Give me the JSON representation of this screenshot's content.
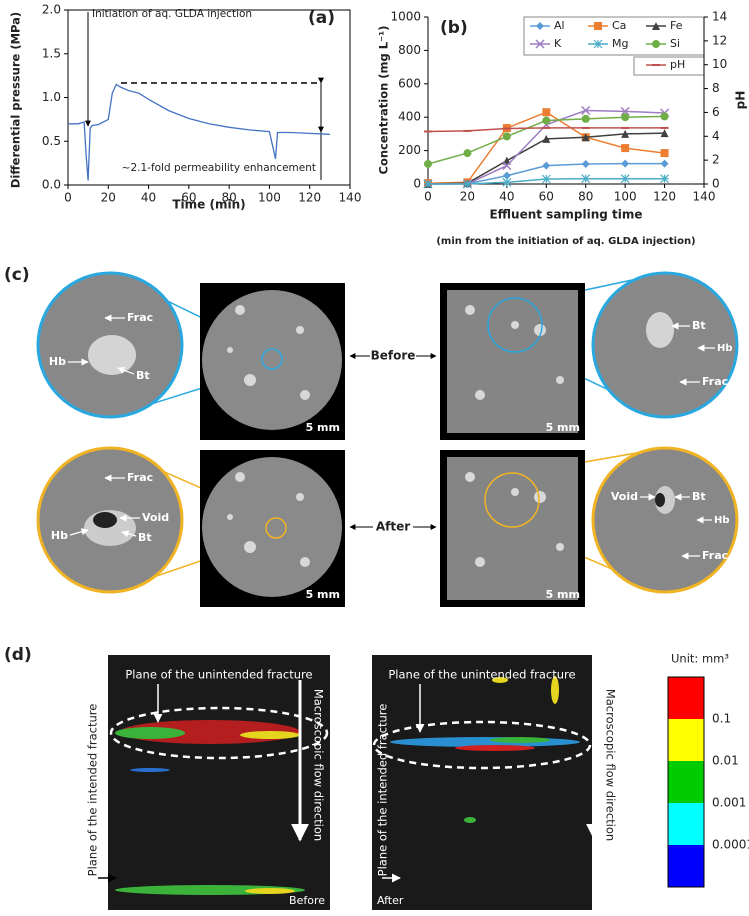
{
  "chart_data": [
    {
      "type": "line",
      "panel_label": "(a)",
      "xlabel": "Time (min)",
      "ylabel": "Differential pressure (MPa)",
      "annotations": [
        "Initiation of aq. GLDA injection",
        "~2.1-fold permeability enhancement"
      ],
      "x": [
        0,
        5,
        8,
        9,
        10,
        11,
        12,
        15,
        20,
        22,
        24,
        26,
        30,
        35,
        40,
        50,
        60,
        70,
        80,
        90,
        100,
        103,
        104,
        110,
        120,
        130
      ],
      "series": [
        {
          "name": "Differential pressure",
          "color": "#4472c4",
          "values": [
            0.7,
            0.7,
            0.72,
            0.35,
            0.05,
            0.65,
            0.68,
            0.69,
            0.75,
            1.05,
            1.15,
            1.12,
            1.08,
            1.05,
            0.98,
            0.85,
            0.76,
            0.7,
            0.66,
            0.63,
            0.61,
            0.3,
            0.6,
            0.6,
            0.59,
            0.58
          ]
        }
      ],
      "xlim": [
        0,
        140
      ],
      "xticks": [
        0,
        20,
        40,
        60,
        80,
        100,
        120,
        140
      ],
      "ylim": [
        0,
        2
      ],
      "yticks": [
        {
          "value": 0,
          "label": "0.0"
        },
        {
          "value": 0.5,
          "label": "0.5"
        },
        {
          "value": 1,
          "label": "1.0"
        },
        {
          "value": 1.5,
          "label": "1.5"
        },
        {
          "value": 2,
          "label": "2.0"
        }
      ]
    },
    {
      "type": "line",
      "panel_label": "(b)",
      "xlabel": "Effluent sampling time",
      "subtitle": "(min from the initiation of aq. GLDA injection)",
      "ylabel": "Concentration (mg L⁻¹)",
      "y2label": "pH",
      "x": [
        0,
        20,
        40,
        60,
        80,
        100,
        120
      ],
      "series": [
        {
          "name": "Al",
          "color": "#5b9bd5",
          "marker": "diamond",
          "values": [
            0,
            2,
            50,
            110,
            120,
            122,
            122
          ]
        },
        {
          "name": "Ca",
          "color": "#ed7d31",
          "marker": "square",
          "values": [
            5,
            10,
            335,
            430,
            280,
            215,
            185
          ]
        },
        {
          "name": "Fe",
          "color": "#404040",
          "marker": "triangle",
          "values": [
            0,
            5,
            140,
            270,
            280,
            300,
            305
          ]
        },
        {
          "name": "K",
          "color": "#9e7cc1",
          "marker": "x",
          "values": [
            0,
            0,
            110,
            355,
            440,
            435,
            425
          ]
        },
        {
          "name": "Mg",
          "color": "#4bacc6",
          "marker": "star",
          "values": [
            0,
            0,
            10,
            30,
            32,
            32,
            32
          ]
        },
        {
          "name": "Si",
          "color": "#70ad47",
          "marker": "circle",
          "values": [
            120,
            185,
            285,
            380,
            390,
            400,
            405
          ]
        },
        {
          "name": "pH",
          "color": "#c0504d",
          "marker": "dash",
          "axis": "y2",
          "values": [
            4.4,
            4.45,
            4.65,
            4.7,
            4.7,
            4.7,
            4.7
          ]
        }
      ],
      "xlim": [
        0,
        140
      ],
      "xticks": [
        0,
        20,
        40,
        60,
        80,
        100,
        120,
        140
      ],
      "ylim": [
        0,
        1000
      ],
      "yticks": [
        0,
        200,
        400,
        600,
        800,
        1000
      ],
      "y2lim": [
        0,
        14
      ],
      "y2ticks": [
        0,
        2,
        4,
        6,
        8,
        10,
        12,
        14
      ]
    }
  ],
  "panel_c": {
    "label": "(c)",
    "before": "Before",
    "after": "After",
    "scale_bars": [
      "5 mm",
      "5 mm",
      "5 mm",
      "5 mm"
    ],
    "zoom_labels": [
      [
        "Frac",
        "Hb",
        "Bt"
      ],
      [
        "Bt",
        "Hb",
        "Frac"
      ],
      [
        "Frac",
        "Void",
        "Hb",
        "Bt"
      ],
      [
        "Void",
        "Bt",
        "Hb",
        "Frac"
      ]
    ]
  },
  "panel_d": {
    "label": "(d)",
    "unintended": [
      "Plane of the unintended fracture",
      "Plane of the unintended fracture"
    ],
    "intended": [
      "Plane of the intended fracture",
      "Plane of the intended fracture"
    ],
    "flow": [
      "Macroscopic flow direction",
      "Macroscopic flow direction"
    ],
    "before": "Before",
    "after": "After",
    "unit": "Unit: mm³",
    "colorbar_labels": [
      "0.1",
      "0.01",
      "0.001",
      "0.0001"
    ]
  }
}
